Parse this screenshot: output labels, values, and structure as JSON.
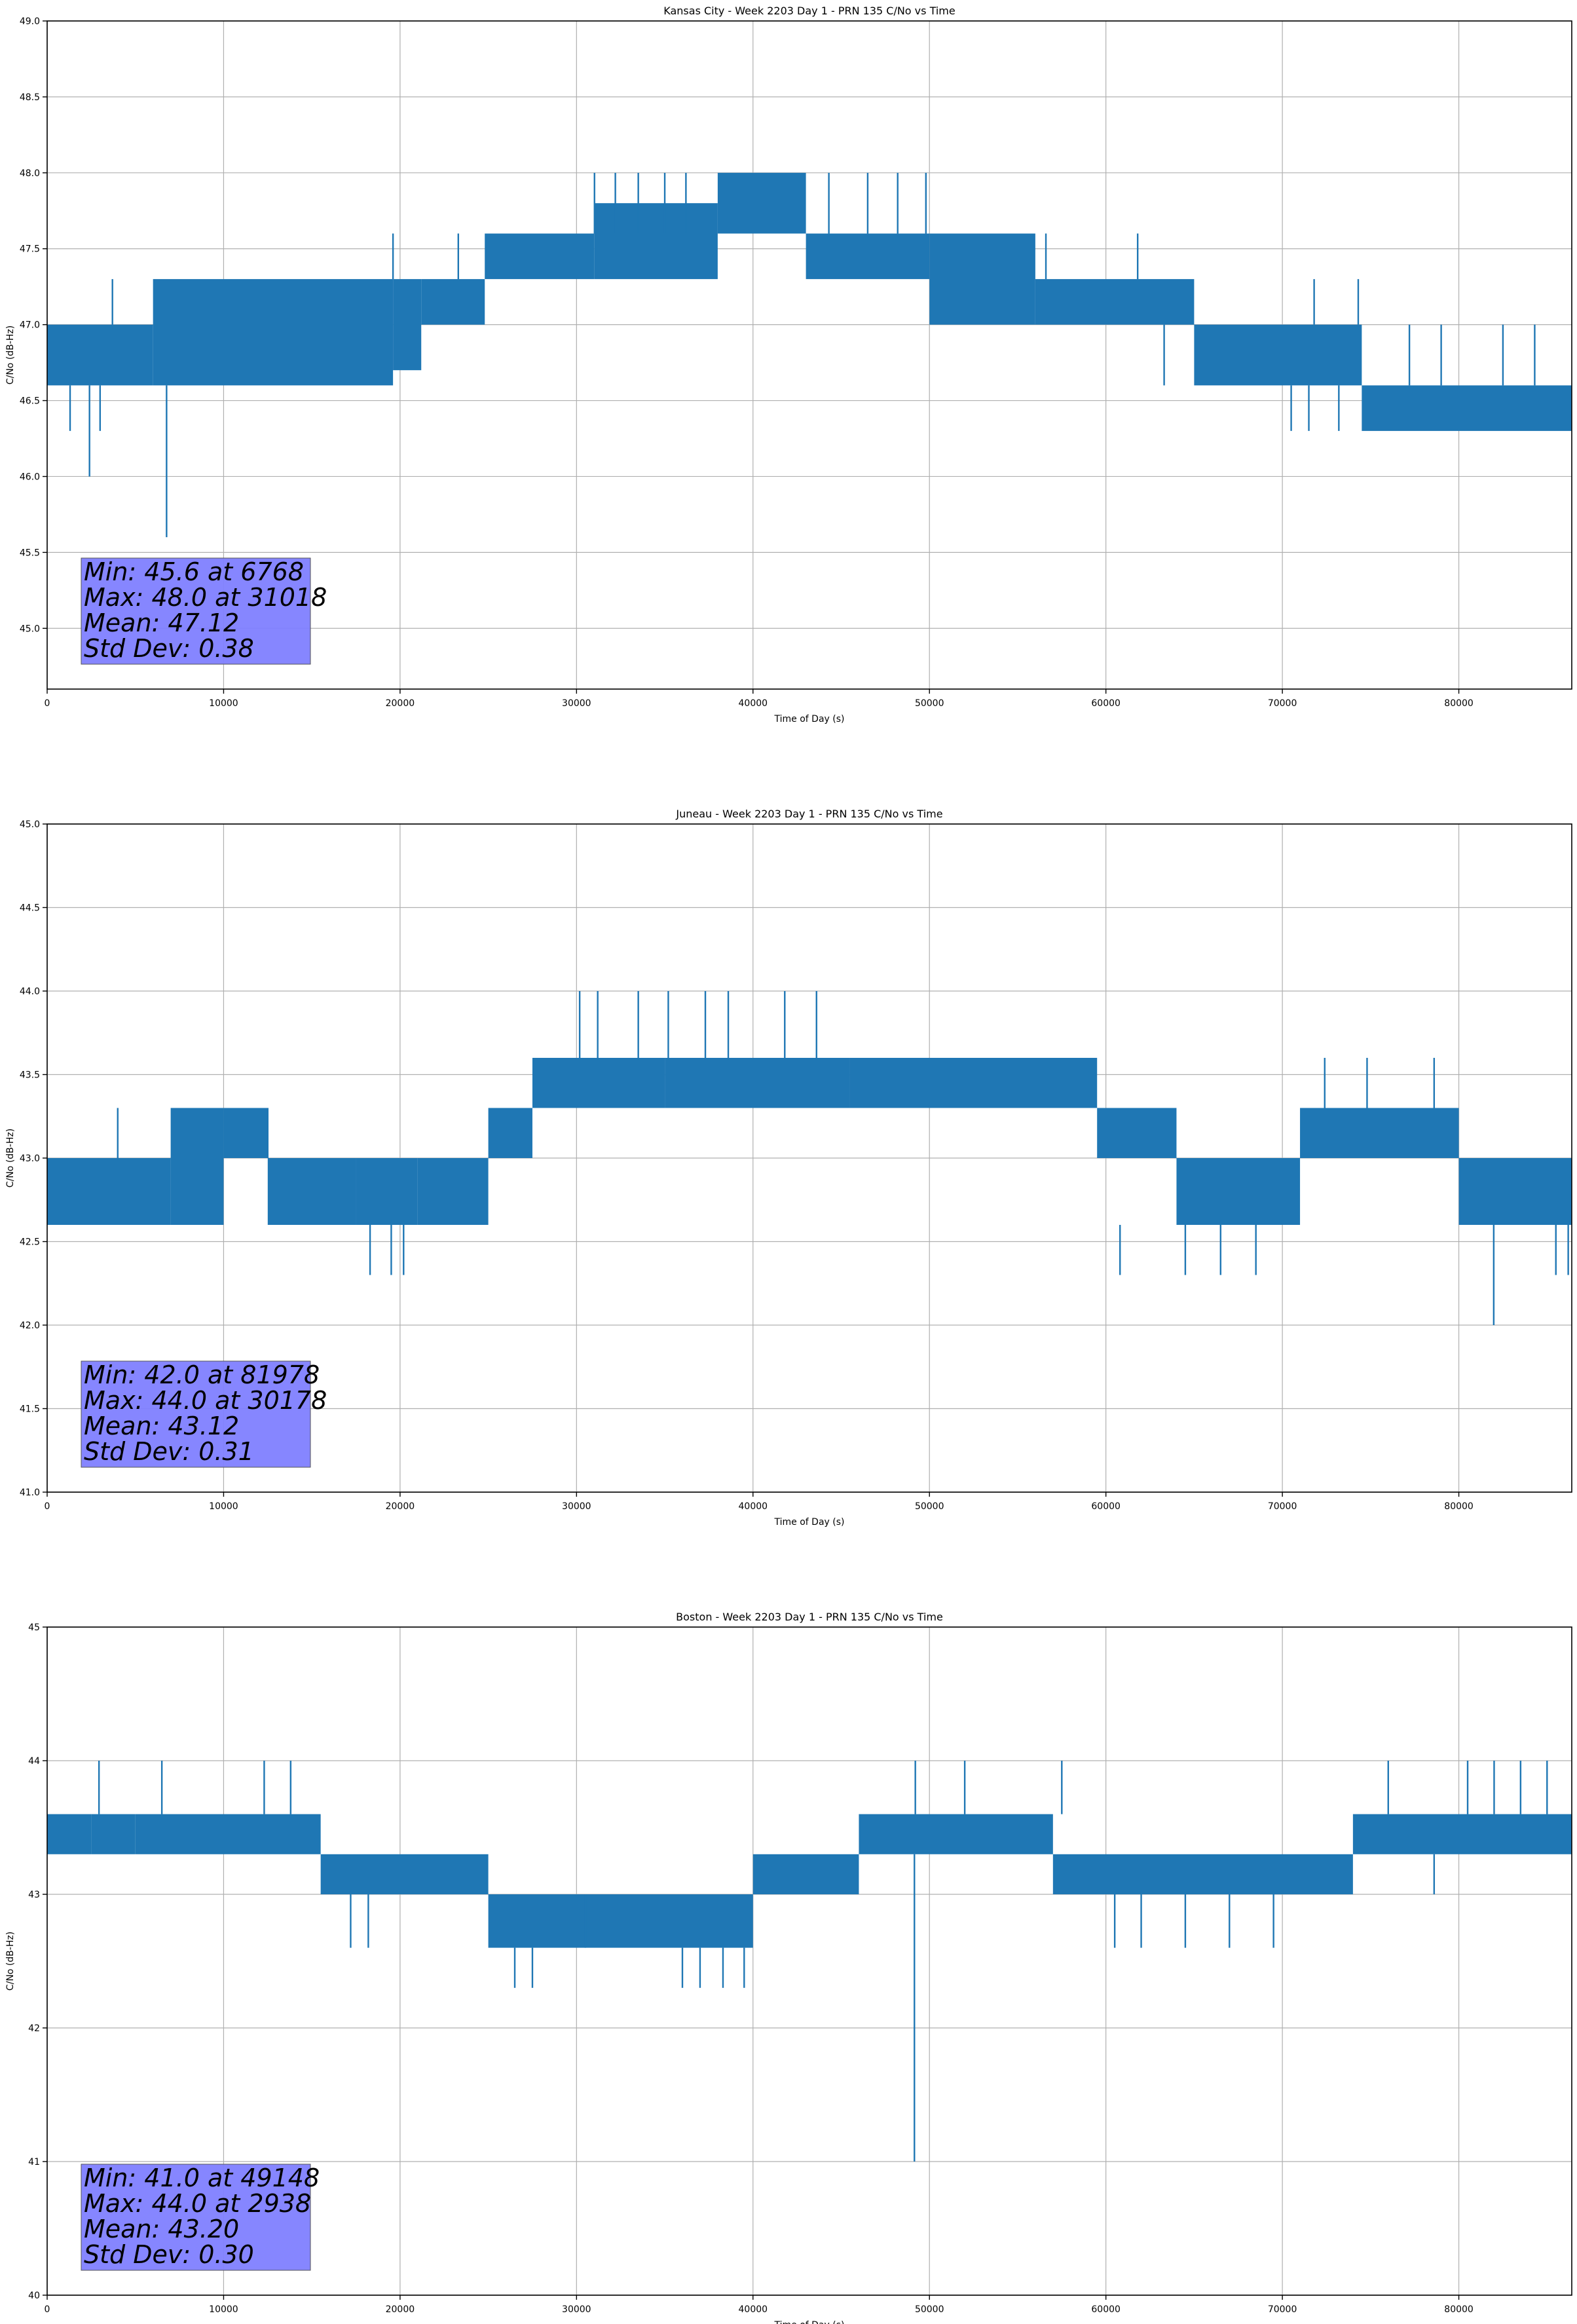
{
  "chart_data": [
    {
      "type": "line",
      "title": "Kansas City - Week 2203 Day 1 - PRN 135 C/No vs Time",
      "xlabel": "Time of Day (s)",
      "ylabel": "C/No (dB-Hz)",
      "xlim": [
        0,
        86400
      ],
      "ylim": [
        44.6,
        49.0
      ],
      "xticks": [
        0,
        10000,
        20000,
        30000,
        40000,
        50000,
        60000,
        70000,
        80000
      ],
      "yticks": [
        45.0,
        45.5,
        46.0,
        46.5,
        47.0,
        47.5,
        48.0,
        48.5,
        49.0
      ],
      "ytick_labels": [
        "45.0",
        "45.5",
        "46.0",
        "46.5",
        "47.0",
        "47.5",
        "48.0",
        "48.5",
        "49.0"
      ],
      "grid": true,
      "series_color": "#1f77b4",
      "stats_box_color": "#8080ff",
      "stats": [
        "Min: 45.6 at 6768",
        "Max: 48.0 at 31018",
        "Mean: 47.12",
        "Std Dev: 0.38"
      ],
      "series": [
        {
          "bands": [
            {
              "x": [
                0,
                1800
              ],
              "lo": 46.6,
              "hi": 47.0
            },
            {
              "x": [
                1800,
                6000
              ],
              "lo": 46.6,
              "hi": 47.0
            },
            {
              "x": [
                6000,
                19600
              ],
              "lo": 46.6,
              "hi": 47.3
            },
            {
              "x": [
                19600,
                21200
              ],
              "lo": 46.7,
              "hi": 47.3
            },
            {
              "x": [
                21200,
                24800
              ],
              "lo": 47.0,
              "hi": 47.3
            },
            {
              "x": [
                24800,
                31000
              ],
              "lo": 47.3,
              "hi": 47.6
            },
            {
              "x": [
                31000,
                38000
              ],
              "lo": 47.3,
              "hi": 47.8
            },
            {
              "x": [
                38000,
                43000
              ],
              "lo": 47.6,
              "hi": 48.0
            },
            {
              "x": [
                43000,
                50000
              ],
              "lo": 47.3,
              "hi": 47.6
            },
            {
              "x": [
                50000,
                56000
              ],
              "lo": 47.0,
              "hi": 47.6
            },
            {
              "x": [
                56000,
                65000
              ],
              "lo": 47.0,
              "hi": 47.3
            },
            {
              "x": [
                65000,
                74500
              ],
              "lo": 46.6,
              "hi": 47.0
            },
            {
              "x": [
                74500,
                86400
              ],
              "lo": 46.3,
              "hi": 46.6
            }
          ],
          "spikes": [
            {
              "x": 1300,
              "lo": 46.3,
              "hi": 46.6
            },
            {
              "x": 2400,
              "lo": 46.0,
              "hi": 46.6
            },
            {
              "x": 3000,
              "lo": 46.3,
              "hi": 46.6
            },
            {
              "x": 3700,
              "lo": 47.0,
              "hi": 47.3
            },
            {
              "x": 6768,
              "lo": 45.6,
              "hi": 46.6
            },
            {
              "x": 19600,
              "lo": 47.3,
              "hi": 47.6
            },
            {
              "x": 23300,
              "lo": 47.3,
              "hi": 47.6
            },
            {
              "x": 31018,
              "lo": 47.6,
              "hi": 48.0
            },
            {
              "x": 32200,
              "lo": 47.6,
              "hi": 48.0
            },
            {
              "x": 33500,
              "lo": 47.6,
              "hi": 48.0
            },
            {
              "x": 35000,
              "lo": 47.6,
              "hi": 48.0
            },
            {
              "x": 36200,
              "lo": 47.6,
              "hi": 48.0
            },
            {
              "x": 44300,
              "lo": 47.6,
              "hi": 48.0
            },
            {
              "x": 46500,
              "lo": 47.6,
              "hi": 48.0
            },
            {
              "x": 48200,
              "lo": 47.6,
              "hi": 48.0
            },
            {
              "x": 49800,
              "lo": 47.6,
              "hi": 48.0
            },
            {
              "x": 56600,
              "lo": 47.3,
              "hi": 47.6
            },
            {
              "x": 61800,
              "lo": 47.3,
              "hi": 47.6
            },
            {
              "x": 63300,
              "lo": 46.6,
              "hi": 47.0
            },
            {
              "x": 70500,
              "lo": 46.3,
              "hi": 46.6
            },
            {
              "x": 71500,
              "lo": 46.3,
              "hi": 46.6
            },
            {
              "x": 71800,
              "lo": 47.0,
              "hi": 47.3
            },
            {
              "x": 73200,
              "lo": 46.3,
              "hi": 46.6
            },
            {
              "x": 74300,
              "lo": 47.0,
              "hi": 47.3
            },
            {
              "x": 77200,
              "lo": 46.6,
              "hi": 47.0
            },
            {
              "x": 79000,
              "lo": 46.6,
              "hi": 47.0
            },
            {
              "x": 82500,
              "lo": 46.6,
              "hi": 47.0
            },
            {
              "x": 84300,
              "lo": 46.6,
              "hi": 47.0
            }
          ]
        }
      ]
    },
    {
      "type": "line",
      "title": "Juneau - Week 2203 Day 1 - PRN 135 C/No vs Time",
      "xlabel": "Time of Day (s)",
      "ylabel": "C/No (dB-Hz)",
      "xlim": [
        0,
        86400
      ],
      "ylim": [
        41.0,
        45.0
      ],
      "xticks": [
        0,
        10000,
        20000,
        30000,
        40000,
        50000,
        60000,
        70000,
        80000
      ],
      "yticks": [
        41.0,
        41.5,
        42.0,
        42.5,
        43.0,
        43.5,
        44.0,
        44.5,
        45.0
      ],
      "ytick_labels": [
        "41.0",
        "41.5",
        "42.0",
        "42.5",
        "43.0",
        "43.5",
        "44.0",
        "44.5",
        "45.0"
      ],
      "grid": true,
      "series_color": "#1f77b4",
      "stats_box_color": "#8080ff",
      "stats": [
        "Min: 42.0 at 81978",
        "Max: 44.0 at 30178",
        "Mean: 43.12",
        "Std Dev: 0.31"
      ],
      "series": [
        {
          "bands": [
            {
              "x": [
                0,
                7000
              ],
              "lo": 42.6,
              "hi": 43.0
            },
            {
              "x": [
                7000,
                10000
              ],
              "lo": 42.6,
              "hi": 43.3
            },
            {
              "x": [
                10000,
                12500
              ],
              "lo": 43.0,
              "hi": 43.3
            },
            {
              "x": [
                12500,
                17500
              ],
              "lo": 42.6,
              "hi": 43.0
            },
            {
              "x": [
                17500,
                21000
              ],
              "lo": 42.6,
              "hi": 43.0
            },
            {
              "x": [
                21000,
                25000
              ],
              "lo": 42.6,
              "hi": 43.0
            },
            {
              "x": [
                25000,
                27500
              ],
              "lo": 43.0,
              "hi": 43.3
            },
            {
              "x": [
                27500,
                35000
              ],
              "lo": 43.3,
              "hi": 43.6
            },
            {
              "x": [
                35000,
                45500
              ],
              "lo": 43.3,
              "hi": 43.6
            },
            {
              "x": [
                45500,
                59500
              ],
              "lo": 43.3,
              "hi": 43.6
            },
            {
              "x": [
                59500,
                64000
              ],
              "lo": 43.0,
              "hi": 43.3
            },
            {
              "x": [
                64000,
                71000
              ],
              "lo": 42.6,
              "hi": 43.0
            },
            {
              "x": [
                71000,
                80000
              ],
              "lo": 43.0,
              "hi": 43.3
            },
            {
              "x": [
                80000,
                86400
              ],
              "lo": 42.6,
              "hi": 43.0
            }
          ],
          "spikes": [
            {
              "x": 4000,
              "lo": 43.0,
              "hi": 43.3
            },
            {
              "x": 12500,
              "lo": 43.0,
              "hi": 43.3
            },
            {
              "x": 18300,
              "lo": 42.3,
              "hi": 42.6
            },
            {
              "x": 19500,
              "lo": 42.3,
              "hi": 42.6
            },
            {
              "x": 20200,
              "lo": 42.3,
              "hi": 42.6
            },
            {
              "x": 30178,
              "lo": 43.6,
              "hi": 44.0
            },
            {
              "x": 31200,
              "lo": 43.6,
              "hi": 44.0
            },
            {
              "x": 33500,
              "lo": 43.6,
              "hi": 44.0
            },
            {
              "x": 35200,
              "lo": 43.6,
              "hi": 44.0
            },
            {
              "x": 37300,
              "lo": 43.6,
              "hi": 44.0
            },
            {
              "x": 38600,
              "lo": 43.6,
              "hi": 44.0
            },
            {
              "x": 41800,
              "lo": 43.6,
              "hi": 44.0
            },
            {
              "x": 43600,
              "lo": 43.6,
              "hi": 44.0
            },
            {
              "x": 60800,
              "lo": 42.3,
              "hi": 42.6
            },
            {
              "x": 64500,
              "lo": 42.3,
              "hi": 42.6
            },
            {
              "x": 66500,
              "lo": 42.3,
              "hi": 42.6
            },
            {
              "x": 68500,
              "lo": 42.3,
              "hi": 42.6
            },
            {
              "x": 72400,
              "lo": 43.3,
              "hi": 43.6
            },
            {
              "x": 74800,
              "lo": 43.3,
              "hi": 43.6
            },
            {
              "x": 78600,
              "lo": 43.3,
              "hi": 43.6
            },
            {
              "x": 81978,
              "lo": 42.0,
              "hi": 42.6
            },
            {
              "x": 85500,
              "lo": 42.3,
              "hi": 42.6
            },
            {
              "x": 86200,
              "lo": 42.3,
              "hi": 42.6
            }
          ]
        }
      ]
    },
    {
      "type": "line",
      "title": "Boston - Week 2203 Day 1 - PRN 135 C/No vs Time",
      "xlabel": "Time of Day (s)",
      "ylabel": "C/No (dB-Hz)",
      "xlim": [
        0,
        86400
      ],
      "ylim": [
        40,
        45
      ],
      "xticks": [
        0,
        10000,
        20000,
        30000,
        40000,
        50000,
        60000,
        70000,
        80000
      ],
      "yticks": [
        40,
        41,
        42,
        43,
        44,
        45
      ],
      "ytick_labels": [
        "40",
        "41",
        "42",
        "43",
        "44",
        "45"
      ],
      "grid": true,
      "series_color": "#1f77b4",
      "stats_box_color": "#8080ff",
      "stats": [
        "Min: 41.0 at 49148",
        "Max: 44.0 at 2938",
        "Mean: 43.20",
        "Std Dev: 0.30"
      ],
      "series": [
        {
          "bands": [
            {
              "x": [
                0,
                2500
              ],
              "lo": 43.3,
              "hi": 43.6
            },
            {
              "x": [
                2500,
                5000
              ],
              "lo": 43.3,
              "hi": 43.6
            },
            {
              "x": [
                5000,
                15500
              ],
              "lo": 43.3,
              "hi": 43.6
            },
            {
              "x": [
                15500,
                25000
              ],
              "lo": 43.0,
              "hi": 43.3
            },
            {
              "x": [
                25000,
                40000
              ],
              "lo": 42.6,
              "hi": 43.0
            },
            {
              "x": [
                40000,
                46000
              ],
              "lo": 43.0,
              "hi": 43.3
            },
            {
              "x": [
                46000,
                57000
              ],
              "lo": 43.3,
              "hi": 43.6
            },
            {
              "x": [
                57000,
                74000
              ],
              "lo": 43.0,
              "hi": 43.3
            },
            {
              "x": [
                74000,
                86400
              ],
              "lo": 43.3,
              "hi": 43.6
            }
          ],
          "spikes": [
            {
              "x": 2938,
              "lo": 43.6,
              "hi": 44.0
            },
            {
              "x": 6500,
              "lo": 43.6,
              "hi": 44.0
            },
            {
              "x": 12300,
              "lo": 43.6,
              "hi": 44.0
            },
            {
              "x": 13800,
              "lo": 43.6,
              "hi": 44.0
            },
            {
              "x": 17200,
              "lo": 42.6,
              "hi": 43.0
            },
            {
              "x": 18200,
              "lo": 42.6,
              "hi": 43.0
            },
            {
              "x": 26500,
              "lo": 42.3,
              "hi": 42.6
            },
            {
              "x": 27500,
              "lo": 42.3,
              "hi": 42.6
            },
            {
              "x": 30500,
              "lo": 42.6,
              "hi": 43.0
            },
            {
              "x": 36000,
              "lo": 42.3,
              "hi": 42.6
            },
            {
              "x": 37000,
              "lo": 42.3,
              "hi": 42.6
            },
            {
              "x": 38300,
              "lo": 42.3,
              "hi": 42.6
            },
            {
              "x": 39500,
              "lo": 42.3,
              "hi": 42.6
            },
            {
              "x": 49148,
              "lo": 41.0,
              "hi": 43.3
            },
            {
              "x": 49200,
              "lo": 43.6,
              "hi": 44.0
            },
            {
              "x": 52000,
              "lo": 43.6,
              "hi": 44.0
            },
            {
              "x": 57500,
              "lo": 43.6,
              "hi": 44.0
            },
            {
              "x": 60500,
              "lo": 42.6,
              "hi": 43.0
            },
            {
              "x": 62000,
              "lo": 42.6,
              "hi": 43.0
            },
            {
              "x": 64500,
              "lo": 42.6,
              "hi": 43.0
            },
            {
              "x": 67000,
              "lo": 42.6,
              "hi": 43.0
            },
            {
              "x": 69500,
              "lo": 42.6,
              "hi": 43.0
            },
            {
              "x": 78600,
              "lo": 43.0,
              "hi": 43.3
            },
            {
              "x": 76000,
              "lo": 43.6,
              "hi": 44.0
            },
            {
              "x": 80500,
              "lo": 43.6,
              "hi": 44.0
            },
            {
              "x": 82000,
              "lo": 43.6,
              "hi": 44.0
            },
            {
              "x": 83500,
              "lo": 43.6,
              "hi": 44.0
            },
            {
              "x": 85000,
              "lo": 43.6,
              "hi": 44.0
            }
          ]
        }
      ]
    }
  ]
}
